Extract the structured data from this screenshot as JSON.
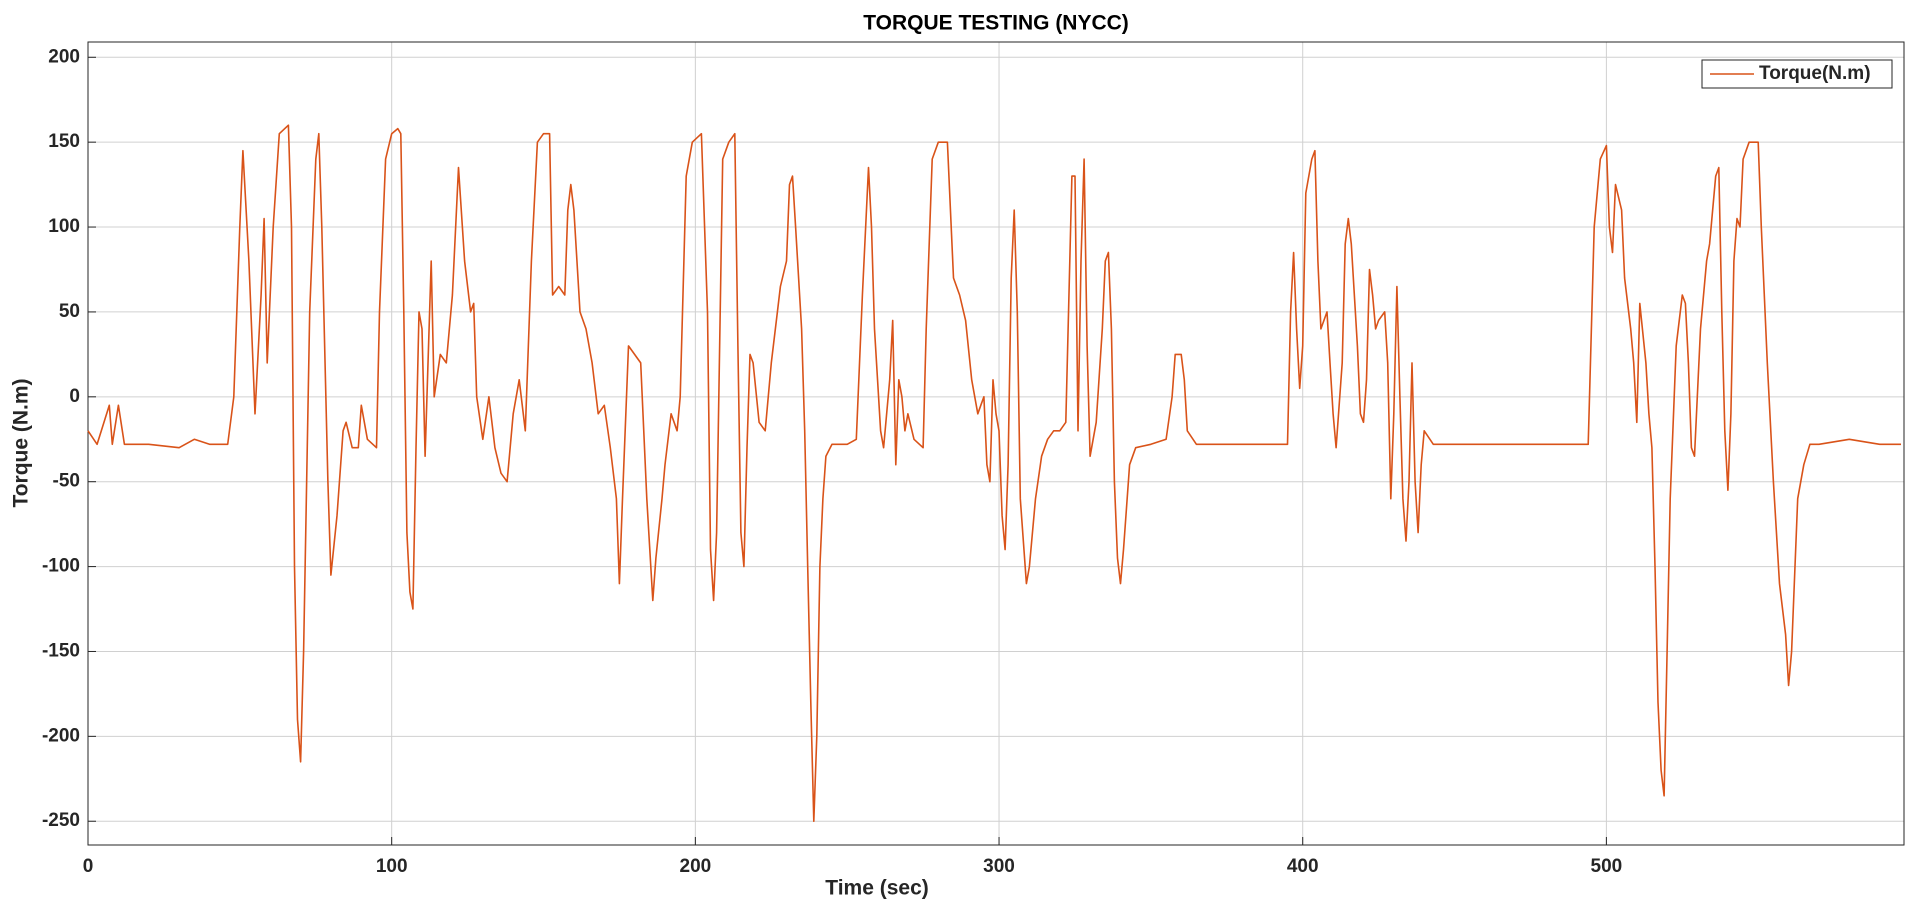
{
  "chart_data": {
    "type": "line",
    "title": "TORQUE TESTING (NYCC)",
    "x_label": "Time (sec)",
    "y_label": "Torque (N.m)",
    "xlim": [
      0,
      598
    ],
    "ylim": [
      -264,
      209
    ],
    "xticks": [
      0,
      100,
      200,
      300,
      400,
      500
    ],
    "yticks": [
      -250,
      -200,
      -150,
      -100,
      -50,
      0,
      50,
      100,
      150,
      200
    ],
    "grid": true,
    "legend": "upper right",
    "x": [
      0,
      3,
      7,
      8,
      10,
      12,
      20,
      30,
      35,
      40,
      46,
      48,
      50,
      51,
      53,
      55,
      57,
      58,
      59,
      61,
      63,
      66,
      67,
      68,
      69,
      70,
      71,
      73,
      75,
      76,
      77,
      79,
      80,
      82,
      84,
      85,
      87,
      89,
      90,
      92,
      95,
      96,
      98,
      100,
      102,
      103,
      104,
      105,
      106,
      107,
      108,
      109,
      110,
      111,
      113,
      114,
      116,
      118,
      120,
      122,
      124,
      126,
      127,
      128,
      130,
      132,
      134,
      136,
      138,
      140,
      142,
      144,
      146,
      148,
      150,
      152,
      153,
      155,
      157,
      158,
      159,
      160,
      162,
      164,
      166,
      168,
      170,
      172,
      174,
      175,
      176,
      178,
      180,
      182,
      184,
      186,
      187,
      189,
      190,
      192,
      194,
      195,
      197,
      199,
      202,
      204,
      205,
      206,
      207,
      209,
      211,
      213,
      214,
      215,
      216,
      217,
      218,
      219,
      221,
      223,
      225,
      227,
      228,
      230,
      231,
      232,
      233,
      235,
      236,
      237,
      238,
      239,
      240,
      241,
      242,
      243,
      245,
      250,
      253,
      255,
      257,
      258,
      259,
      261,
      262,
      264,
      265,
      266,
      267,
      268,
      269,
      270,
      272,
      275,
      276,
      278,
      280,
      283,
      285,
      287,
      289,
      291,
      293,
      294,
      295,
      296,
      297,
      298,
      299,
      300,
      301,
      302,
      303,
      304,
      305,
      306,
      307,
      309,
      310,
      312,
      314,
      316,
      318,
      320,
      322,
      324,
      325,
      326,
      327,
      328,
      329,
      330,
      332,
      334,
      335,
      336,
      337,
      338,
      339,
      340,
      341,
      343,
      345,
      350,
      355,
      357,
      358,
      360,
      361,
      362,
      365,
      370,
      380,
      390,
      395,
      396,
      397,
      398,
      399,
      400,
      401,
      403,
      404,
      405,
      406,
      408,
      409,
      410,
      411,
      413,
      414,
      415,
      416,
      418,
      419,
      420,
      421,
      422,
      423,
      424,
      425,
      427,
      428,
      429,
      430,
      431,
      432,
      433,
      434,
      435,
      436,
      437,
      438,
      439,
      440,
      443,
      450,
      460,
      470,
      480,
      490,
      494,
      496,
      498,
      500,
      501,
      502,
      503,
      505,
      506,
      508,
      509,
      510,
      511,
      513,
      514,
      515,
      516,
      517,
      518,
      519,
      520,
      521,
      523,
      525,
      526,
      527,
      528,
      529,
      531,
      533,
      534,
      536,
      537,
      538,
      539,
      540,
      541,
      542,
      543,
      544,
      545,
      547,
      550,
      551,
      552,
      553,
      555,
      557,
      559,
      560,
      561,
      563,
      565,
      567,
      570,
      580,
      590,
      597
    ],
    "series": [
      {
        "name": "Torque(N.m)",
        "color": "#d95319",
        "values": [
          -20,
          -28,
          -5,
          -28,
          -5,
          -28,
          -28,
          -30,
          -25,
          -28,
          -28,
          0,
          100,
          145,
          80,
          -10,
          60,
          105,
          20,
          100,
          155,
          160,
          100,
          -100,
          -190,
          -215,
          -150,
          50,
          140,
          155,
          100,
          -50,
          -105,
          -70,
          -20,
          -15,
          -30,
          -30,
          -5,
          -25,
          -30,
          50,
          140,
          155,
          158,
          155,
          50,
          -80,
          -115,
          -125,
          -30,
          50,
          40,
          -35,
          80,
          0,
          25,
          20,
          60,
          135,
          80,
          50,
          55,
          0,
          -25,
          0,
          -30,
          -45,
          -50,
          -10,
          10,
          -20,
          80,
          150,
          155,
          155,
          60,
          65,
          60,
          110,
          125,
          110,
          50,
          40,
          20,
          -10,
          -5,
          -30,
          -60,
          -110,
          -60,
          30,
          25,
          20,
          -60,
          -120,
          -95,
          -60,
          -40,
          -10,
          -20,
          0,
          130,
          150,
          155,
          50,
          -90,
          -120,
          -80,
          140,
          150,
          155,
          30,
          -80,
          -100,
          -30,
          25,
          20,
          -15,
          -20,
          20,
          50,
          65,
          80,
          125,
          130,
          100,
          40,
          -20,
          -100,
          -180,
          -250,
          -200,
          -100,
          -60,
          -35,
          -28,
          -28,
          -25,
          60,
          135,
          100,
          40,
          -20,
          -30,
          10,
          45,
          -40,
          10,
          0,
          -20,
          -10,
          -25,
          -30,
          40,
          140,
          150,
          150,
          70,
          60,
          45,
          10,
          -10,
          -5,
          0,
          -40,
          -50,
          10,
          -10,
          -20,
          -70,
          -90,
          -40,
          70,
          110,
          50,
          -60,
          -110,
          -100,
          -60,
          -35,
          -25,
          -20,
          -20,
          -15,
          130,
          130,
          -20,
          80,
          140,
          30,
          -35,
          -15,
          40,
          80,
          85,
          40,
          -50,
          -95,
          -110,
          -90,
          -40,
          -30,
          -28,
          -25,
          0,
          25,
          25,
          10,
          -20,
          -28,
          -28,
          -28,
          -28,
          -28,
          50,
          85,
          40,
          5,
          30,
          120,
          140,
          145,
          80,
          40,
          50,
          20,
          -10,
          -30,
          20,
          90,
          105,
          90,
          30,
          -10,
          -15,
          10,
          75,
          60,
          40,
          45,
          50,
          20,
          -60,
          -10,
          65,
          0,
          -60,
          -85,
          -50,
          20,
          -50,
          -80,
          -40,
          -20,
          -28,
          -28,
          -28,
          -28,
          -28,
          -28,
          -28,
          100,
          140,
          148,
          100,
          85,
          125,
          110,
          70,
          40,
          20,
          -15,
          55,
          20,
          -10,
          -30,
          -100,
          -180,
          -220,
          -235,
          -150,
          -60,
          30,
          60,
          55,
          20,
          -30,
          -35,
          40,
          80,
          90,
          130,
          135,
          50,
          -20,
          -55,
          -10,
          80,
          105,
          100,
          140,
          150,
          150,
          100,
          60,
          20,
          -50,
          -110,
          -140,
          -170,
          -150,
          -60,
          -40,
          -28,
          -28,
          -25,
          -28,
          -28
        ]
      }
    ]
  }
}
